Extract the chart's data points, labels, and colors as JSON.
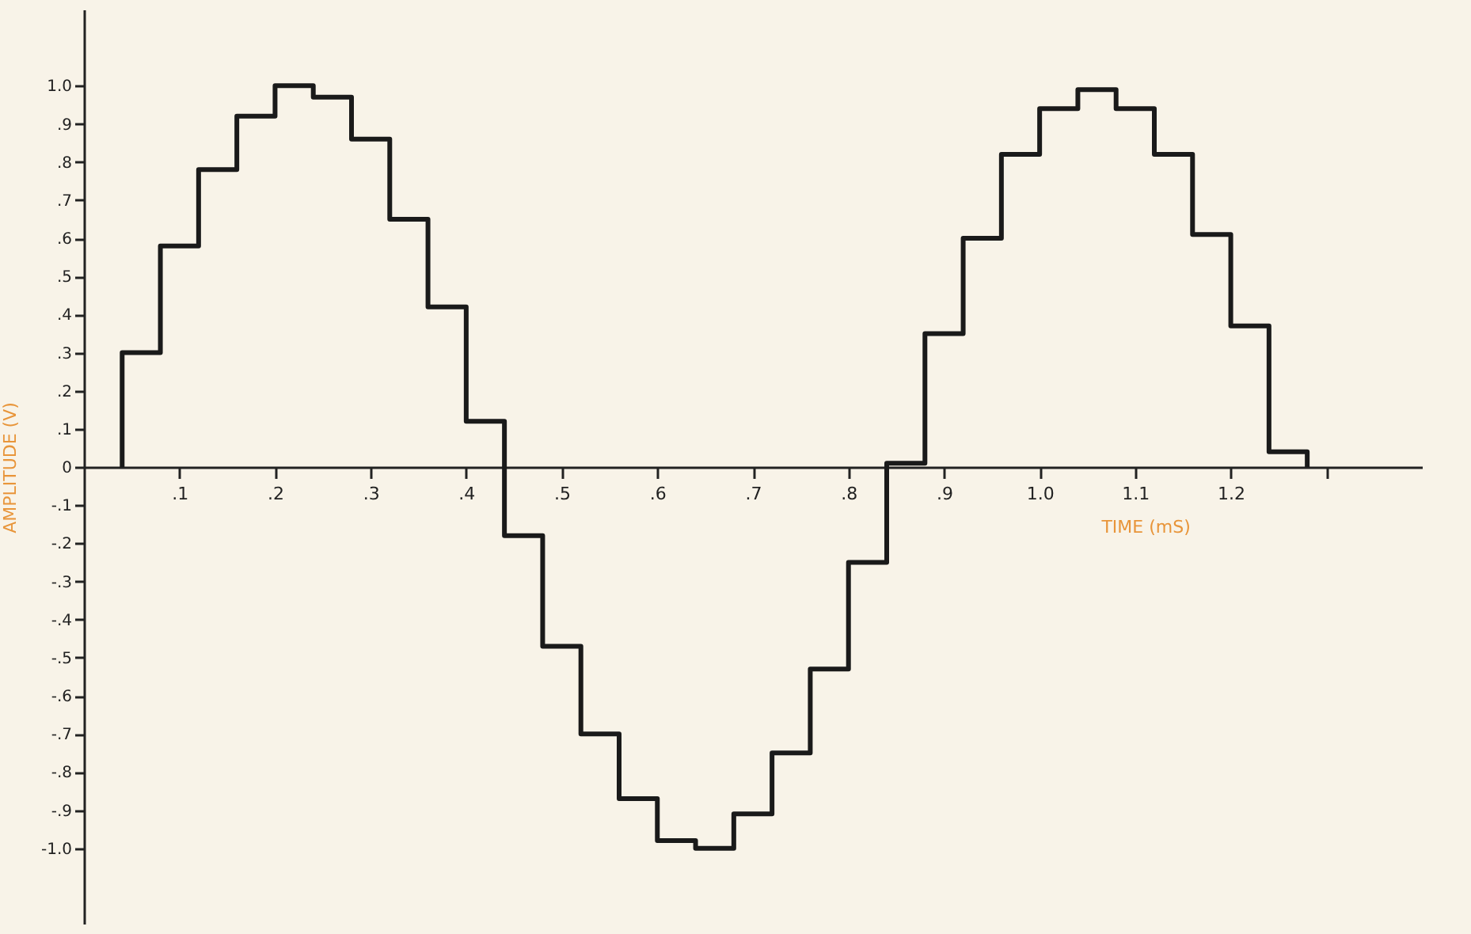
{
  "chart_data": {
    "type": "step",
    "xlabel": "TIME (mS)",
    "ylabel": "AMPLITUDE (V)",
    "x": [
      0.04,
      0.04,
      0.08,
      0.12,
      0.16,
      0.2,
      0.24,
      0.28,
      0.32,
      0.36,
      0.4,
      0.44,
      0.48,
      0.52,
      0.56,
      0.6,
      0.64,
      0.68,
      0.72,
      0.76,
      0.8,
      0.84,
      0.88,
      0.92,
      0.96,
      1.0,
      1.04,
      1.08,
      1.12,
      1.16,
      1.2,
      1.24,
      1.28
    ],
    "series": [
      {
        "color": "#1a1a1a",
        "values": [
          0,
          0.3,
          0.58,
          0.78,
          0.92,
          1.0,
          0.97,
          0.86,
          0.65,
          0.42,
          0.12,
          -0.18,
          -0.47,
          -0.7,
          -0.87,
          -0.98,
          -1.0,
          -0.91,
          -0.75,
          -0.53,
          -0.25,
          0.01,
          0.35,
          0.6,
          0.82,
          0.94,
          0.99,
          0.94,
          0.82,
          0.61,
          0.37,
          0.04,
          0
        ]
      }
    ],
    "xlim": [
      0,
      1.4
    ],
    "ylim": [
      -1.2,
      1.2
    ],
    "xticks": [
      {
        "value": 0.1,
        "label": ".1"
      },
      {
        "value": 0.2,
        "label": ".2"
      },
      {
        "value": 0.3,
        "label": ".3"
      },
      {
        "value": 0.4,
        "label": ".4"
      },
      {
        "value": 0.5,
        "label": ".5"
      },
      {
        "value": 0.6,
        "label": ".6"
      },
      {
        "value": 0.7,
        "label": ".7"
      },
      {
        "value": 0.8,
        "label": ".8"
      },
      {
        "value": 0.9,
        "label": ".9"
      },
      {
        "value": 1.0,
        "label": "1.0"
      },
      {
        "value": 1.1,
        "label": "1.1"
      },
      {
        "value": 1.2,
        "label": "1.2"
      },
      {
        "value": 1.3,
        "label": null
      }
    ],
    "yticks": [
      {
        "value": 1.0,
        "label": "1.0"
      },
      {
        "value": 0.9,
        "label": ".9"
      },
      {
        "value": 0.8,
        "label": ".8"
      },
      {
        "value": 0.7,
        "label": ".7"
      },
      {
        "value": 0.6,
        "label": ".6"
      },
      {
        "value": 0.5,
        "label": ".5"
      },
      {
        "value": 0.4,
        "label": ".4"
      },
      {
        "value": 0.3,
        "label": ".3"
      },
      {
        "value": 0.2,
        "label": ".2"
      },
      {
        "value": 0.1,
        "label": ".1"
      },
      0,
      {
        "value": -0.1,
        "label": "-.1"
      },
      {
        "value": -0.2,
        "label": "-.2"
      },
      {
        "value": -0.3,
        "label": "-.3"
      },
      {
        "value": -0.4,
        "label": "-.4"
      },
      {
        "value": -0.5,
        "label": "-.5"
      },
      {
        "value": -0.6,
        "label": "-.6"
      },
      {
        "value": -0.7,
        "label": "-.7"
      },
      {
        "value": -0.8,
        "label": "-.8"
      },
      {
        "value": -0.9,
        "label": "-.9"
      },
      {
        "value": -1.0,
        "label": "-1.0"
      }
    ],
    "grid": false,
    "marker": "none",
    "line_style": "solid"
  }
}
